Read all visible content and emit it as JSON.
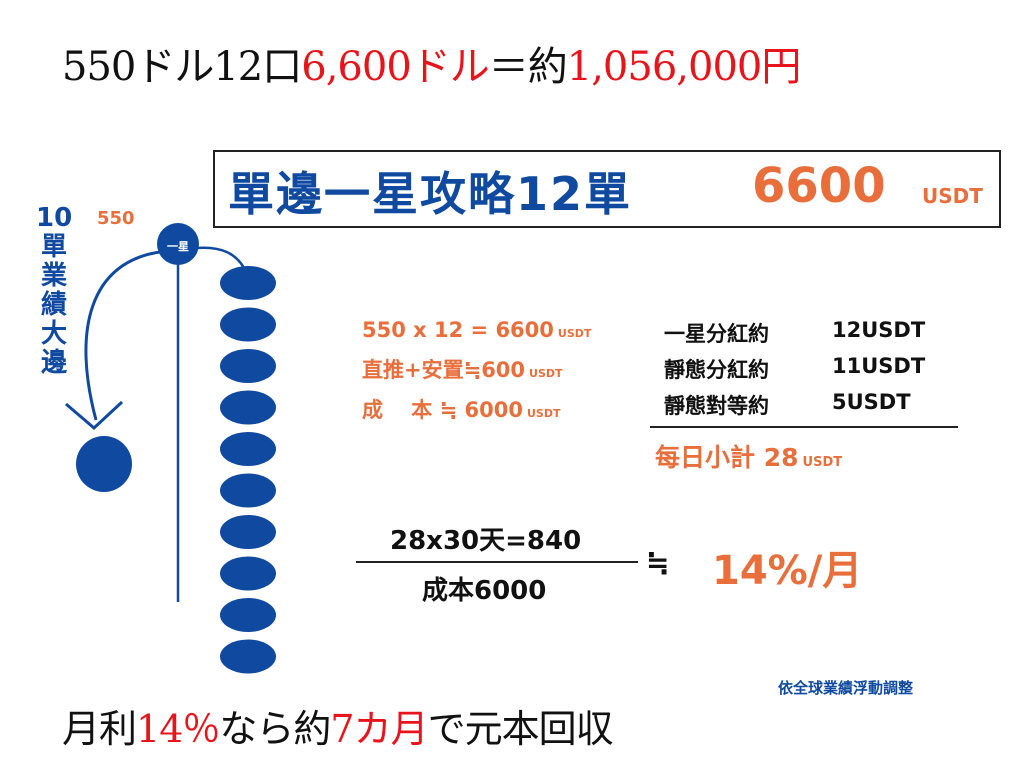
{
  "header": {
    "part1": "550ドル12口",
    "part2": "6,600ドル",
    "part3": "＝約",
    "part4": "1,056,000円"
  },
  "title": {
    "main": "單邊一星攻略12單",
    "amount": "6600",
    "unit": "USDT"
  },
  "diagram": {
    "vertical_text": "10單業績大邊",
    "node_value": "550",
    "star_node": "一星",
    "colors": {
      "node": "#0f4aa0",
      "line": "#0f4aa0"
    },
    "stack_count": 10
  },
  "calc": {
    "line1": "550 x 12 = 6600",
    "line2": "直推+安置≒600",
    "line3": "成　 本 ≒ 6000",
    "unit": "USDT"
  },
  "dividends": [
    {
      "label": "一星分紅約",
      "value": "12USDT"
    },
    {
      "label": "靜態分紅約",
      "value": "11USDT"
    },
    {
      "label": "靜態對等約",
      "value": "5USDT"
    }
  ],
  "daily": {
    "label": "每日小計",
    "value": "28",
    "unit": "USDT"
  },
  "formula": {
    "numerator": "28x30天=840",
    "denominator": "成本6000",
    "approx": "≒",
    "result": "14%/月"
  },
  "note": "依全球業績浮動調整",
  "footer": {
    "part1": "月利",
    "part2": "14％",
    "part3": "なら約",
    "part4": "7カ月",
    "part5": "で元本回収"
  }
}
